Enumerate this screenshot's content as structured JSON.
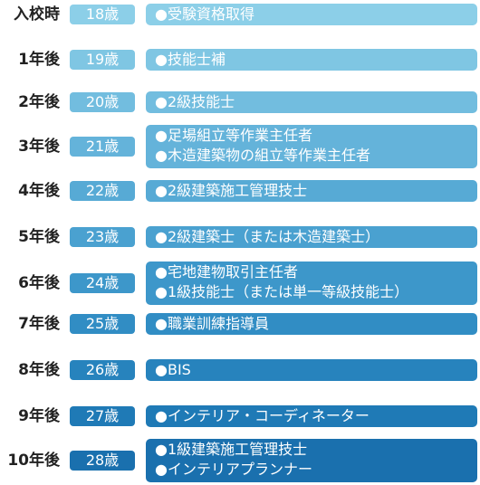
{
  "timeline": [
    {
      "period": "入校時",
      "age": "18歳",
      "qualifications": [
        "●受験資格取得"
      ],
      "age_color": "#8ccfe8",
      "bar_color": "#8ccfe8"
    },
    {
      "period": "1年後",
      "age": "19歳",
      "qualifications": [
        "●技能士補"
      ],
      "age_color": "#7fc6e3",
      "bar_color": "#7fc6e3"
    },
    {
      "period": "2年後",
      "age": "20歳",
      "qualifications": [
        "●2級技能士"
      ],
      "age_color": "#72bddf",
      "bar_color": "#72bddf"
    },
    {
      "period": "3年後",
      "age": "21歳",
      "qualifications": [
        "●足場組立等作業主任者",
        "●木造建築物の組立等作業主任者"
      ],
      "age_color": "#64b3da",
      "bar_color": "#64b3da"
    },
    {
      "period": "4年後",
      "age": "22歳",
      "qualifications": [
        "●2級建築施工管理技士"
      ],
      "age_color": "#57aad5",
      "bar_color": "#57aad5"
    },
    {
      "period": "5年後",
      "age": "23歳",
      "qualifications": [
        "●2級建築士（または木造建築士）"
      ],
      "age_color": "#4aa1d0",
      "bar_color": "#4aa1d0"
    },
    {
      "period": "6年後",
      "age": "24歳",
      "qualifications": [
        "●宅地建物取引主任者",
        "●1級技能士（または単一等級技能士）"
      ],
      "age_color": "#3d97ca",
      "bar_color": "#3d97ca"
    },
    {
      "period": "7年後",
      "age": "25歳",
      "qualifications": [
        "●職業訓練指導員"
      ],
      "age_color": "#318dc4",
      "bar_color": "#318dc4"
    },
    {
      "period": "8年後",
      "age": "26歳",
      "qualifications": [
        "●BIS"
      ],
      "age_color": "#2783bd",
      "bar_color": "#2783bd"
    },
    {
      "period": "9年後",
      "age": "27歳",
      "qualifications": [
        "●インテリア・コーディネーター"
      ],
      "age_color": "#1f7ab6",
      "bar_color": "#1f7ab6"
    },
    {
      "period": "10年後",
      "age": "28歳",
      "qualifications": [
        "●1級建築施工管理技士",
        "●インテリアプランナー"
      ],
      "age_color": "#1a70ae",
      "bar_color": "#1a70ae"
    }
  ]
}
